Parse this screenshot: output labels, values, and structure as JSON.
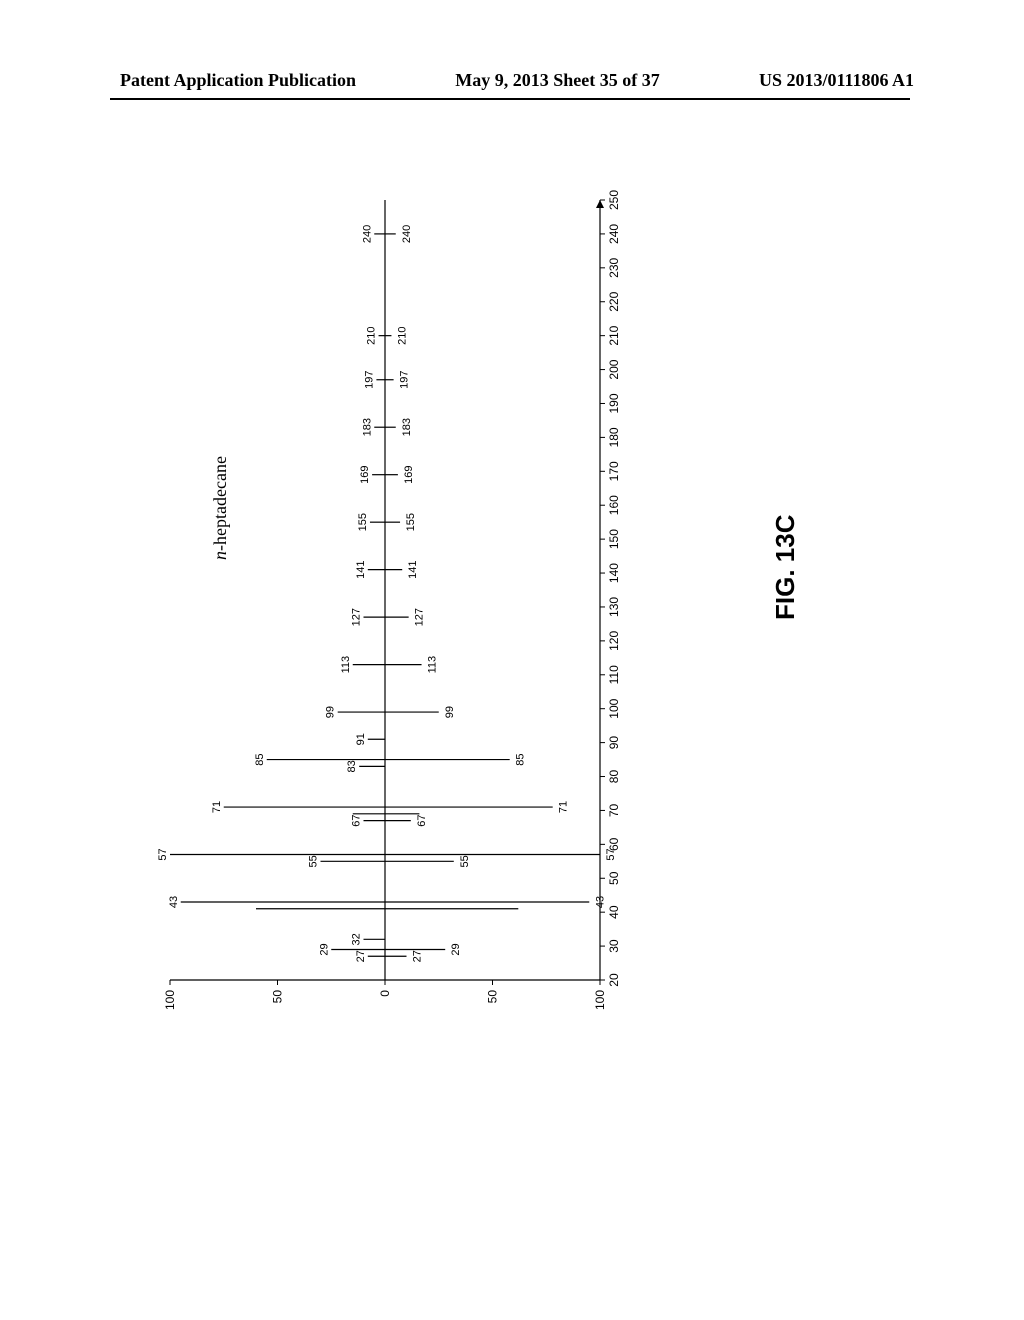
{
  "header": {
    "left": "Patent Application Publication",
    "center": "May 9, 2013  Sheet 35 of 37",
    "right": "US 2013/0111806 A1"
  },
  "figure_label": "FIG. 13C",
  "compound": "n-heptadecane",
  "spectrum": {
    "type": "mirrored-mass-spectrum",
    "background_color": "#ffffff",
    "line_color": "#000000",
    "axis_fontsize": 12,
    "peak_label_fontsize": 11,
    "x_axis": {
      "min": 20,
      "max": 250,
      "tick_step": 10,
      "label_fontsize": 12
    },
    "y_axis": {
      "min": -100,
      "max": 100,
      "ticks": [
        -100,
        -50,
        0,
        50,
        100
      ]
    },
    "peaks_top": [
      {
        "mz": 27,
        "intensity": 8,
        "label": "27"
      },
      {
        "mz": 29,
        "intensity": 25,
        "label": "29"
      },
      {
        "mz": 32,
        "intensity": 10,
        "label": "32"
      },
      {
        "mz": 41,
        "intensity": 60
      },
      {
        "mz": 43,
        "intensity": 95,
        "label": "43"
      },
      {
        "mz": 55,
        "intensity": 30,
        "label": "55"
      },
      {
        "mz": 57,
        "intensity": 100,
        "label": "57"
      },
      {
        "mz": 67,
        "intensity": 10,
        "label": "67"
      },
      {
        "mz": 69,
        "intensity": 15
      },
      {
        "mz": 71,
        "intensity": 75,
        "label": "71"
      },
      {
        "mz": 83,
        "intensity": 12,
        "label": "83"
      },
      {
        "mz": 85,
        "intensity": 55,
        "label": "85"
      },
      {
        "mz": 91,
        "intensity": 8,
        "label": "91"
      },
      {
        "mz": 99,
        "intensity": 22,
        "label": "99"
      },
      {
        "mz": 113,
        "intensity": 15,
        "label": "113"
      },
      {
        "mz": 127,
        "intensity": 10,
        "label": "127"
      },
      {
        "mz": 141,
        "intensity": 8,
        "label": "141"
      },
      {
        "mz": 155,
        "intensity": 7,
        "label": "155"
      },
      {
        "mz": 169,
        "intensity": 6,
        "label": "169"
      },
      {
        "mz": 183,
        "intensity": 5,
        "label": "183"
      },
      {
        "mz": 197,
        "intensity": 4,
        "label": "197"
      },
      {
        "mz": 210,
        "intensity": 3,
        "label": "210"
      },
      {
        "mz": 240,
        "intensity": 5,
        "label": "240"
      }
    ],
    "peaks_bottom": [
      {
        "mz": 27,
        "intensity": 10,
        "label": "27"
      },
      {
        "mz": 29,
        "intensity": 28,
        "label": "29"
      },
      {
        "mz": 41,
        "intensity": 62
      },
      {
        "mz": 43,
        "intensity": 95,
        "label": "43"
      },
      {
        "mz": 55,
        "intensity": 32,
        "label": "55"
      },
      {
        "mz": 57,
        "intensity": 100,
        "label": "57"
      },
      {
        "mz": 67,
        "intensity": 12,
        "label": "67"
      },
      {
        "mz": 69,
        "intensity": 16
      },
      {
        "mz": 71,
        "intensity": 78,
        "label": "71"
      },
      {
        "mz": 85,
        "intensity": 58,
        "label": "85"
      },
      {
        "mz": 99,
        "intensity": 25,
        "label": "99"
      },
      {
        "mz": 113,
        "intensity": 17,
        "label": "113"
      },
      {
        "mz": 127,
        "intensity": 11,
        "label": "127"
      },
      {
        "mz": 141,
        "intensity": 8,
        "label": "141"
      },
      {
        "mz": 155,
        "intensity": 7,
        "label": "155"
      },
      {
        "mz": 169,
        "intensity": 6,
        "label": "169"
      },
      {
        "mz": 183,
        "intensity": 5,
        "label": "183"
      },
      {
        "mz": 197,
        "intensity": 4,
        "label": "197"
      },
      {
        "mz": 210,
        "intensity": 3,
        "label": "210"
      },
      {
        "mz": 240,
        "intensity": 5,
        "label": "240"
      }
    ]
  }
}
